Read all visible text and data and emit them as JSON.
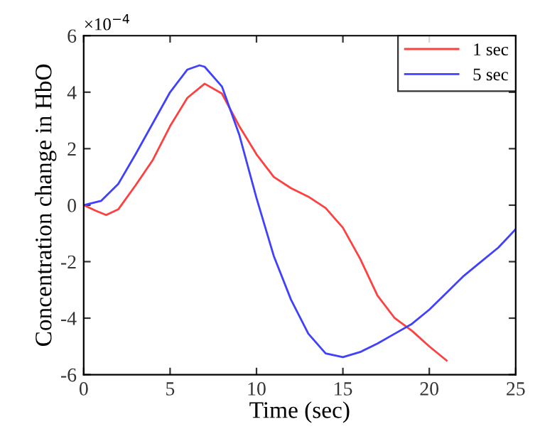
{
  "chart_data": {
    "type": "line",
    "xlabel": "Time (sec)",
    "ylabel": "Concentration change in HbO",
    "annotations": [
      "×10$^{−4}$"
    ],
    "xlim": [
      0,
      25
    ],
    "xticks": [
      0,
      5,
      10,
      15,
      20,
      25
    ],
    "ylim": [
      -6,
      6
    ],
    "yticks": [
      -6,
      -4,
      -2,
      0,
      2,
      4,
      6
    ],
    "grid": false,
    "legend": "top right",
    "line_style": "solid",
    "marker": "none",
    "series": [
      {
        "name": "1 sec",
        "color": "#ff4040",
        "x": [
          0,
          0.7,
          1.3,
          2,
          3,
          4,
          5,
          6,
          7,
          8,
          9,
          10,
          11,
          12,
          13,
          14,
          15,
          16,
          17,
          18,
          19,
          20,
          21
        ],
        "values": [
          0,
          -0.2,
          -0.35,
          -0.15,
          0.7,
          1.6,
          2.8,
          3.8,
          4.3,
          3.95,
          2.8,
          1.8,
          1.0,
          0.6,
          0.3,
          -0.1,
          -0.8,
          -1.9,
          -3.2,
          -4.0,
          -4.45,
          -5.0,
          -5.5
        ]
      },
      {
        "name": "5 sec",
        "color": "#4040ff",
        "x": [
          0,
          1,
          2,
          3,
          4,
          5,
          6,
          6.7,
          7,
          8,
          9,
          10,
          11,
          12,
          13,
          14,
          15,
          16,
          17,
          18,
          19,
          20,
          21,
          22,
          23,
          24,
          25
        ],
        "values": [
          0,
          0.15,
          0.75,
          1.8,
          2.9,
          4.0,
          4.8,
          4.95,
          4.9,
          4.2,
          2.5,
          0.25,
          -1.8,
          -3.35,
          -4.55,
          -5.25,
          -5.38,
          -5.2,
          -4.9,
          -4.55,
          -4.2,
          -3.7,
          -3.1,
          -2.5,
          -2.0,
          -1.5,
          -0.85
        ]
      }
    ]
  }
}
